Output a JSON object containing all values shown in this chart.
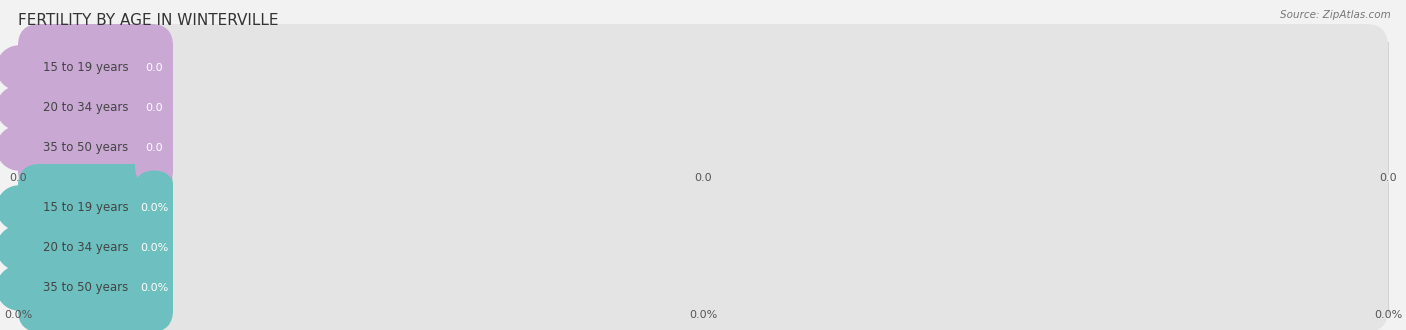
{
  "title": "FERTILITY BY AGE IN WINTERVILLE",
  "source": "Source: ZipAtlas.com",
  "background_color": "#f2f2f2",
  "top_section": {
    "categories": [
      "15 to 19 years",
      "20 to 34 years",
      "35 to 50 years"
    ],
    "bar_color": "#c9a8d4",
    "bar_bg_color": "#e4e4e4",
    "value_labels": [
      "0.0",
      "0.0",
      "0.0"
    ],
    "axis_tick_labels": [
      "0.0",
      "0.0",
      "0.0"
    ]
  },
  "bottom_section": {
    "categories": [
      "15 to 19 years",
      "20 to 34 years",
      "35 to 50 years"
    ],
    "bar_color": "#6dc0bf",
    "bar_bg_color": "#e4e4e4",
    "value_labels": [
      "0.0%",
      "0.0%",
      "0.0%"
    ],
    "axis_tick_labels": [
      "0.0%",
      "0.0%",
      "0.0%"
    ]
  },
  "title_fontsize": 11,
  "source_fontsize": 7.5,
  "label_fontsize": 8.5,
  "value_fontsize": 8,
  "tick_label_fontsize": 8
}
